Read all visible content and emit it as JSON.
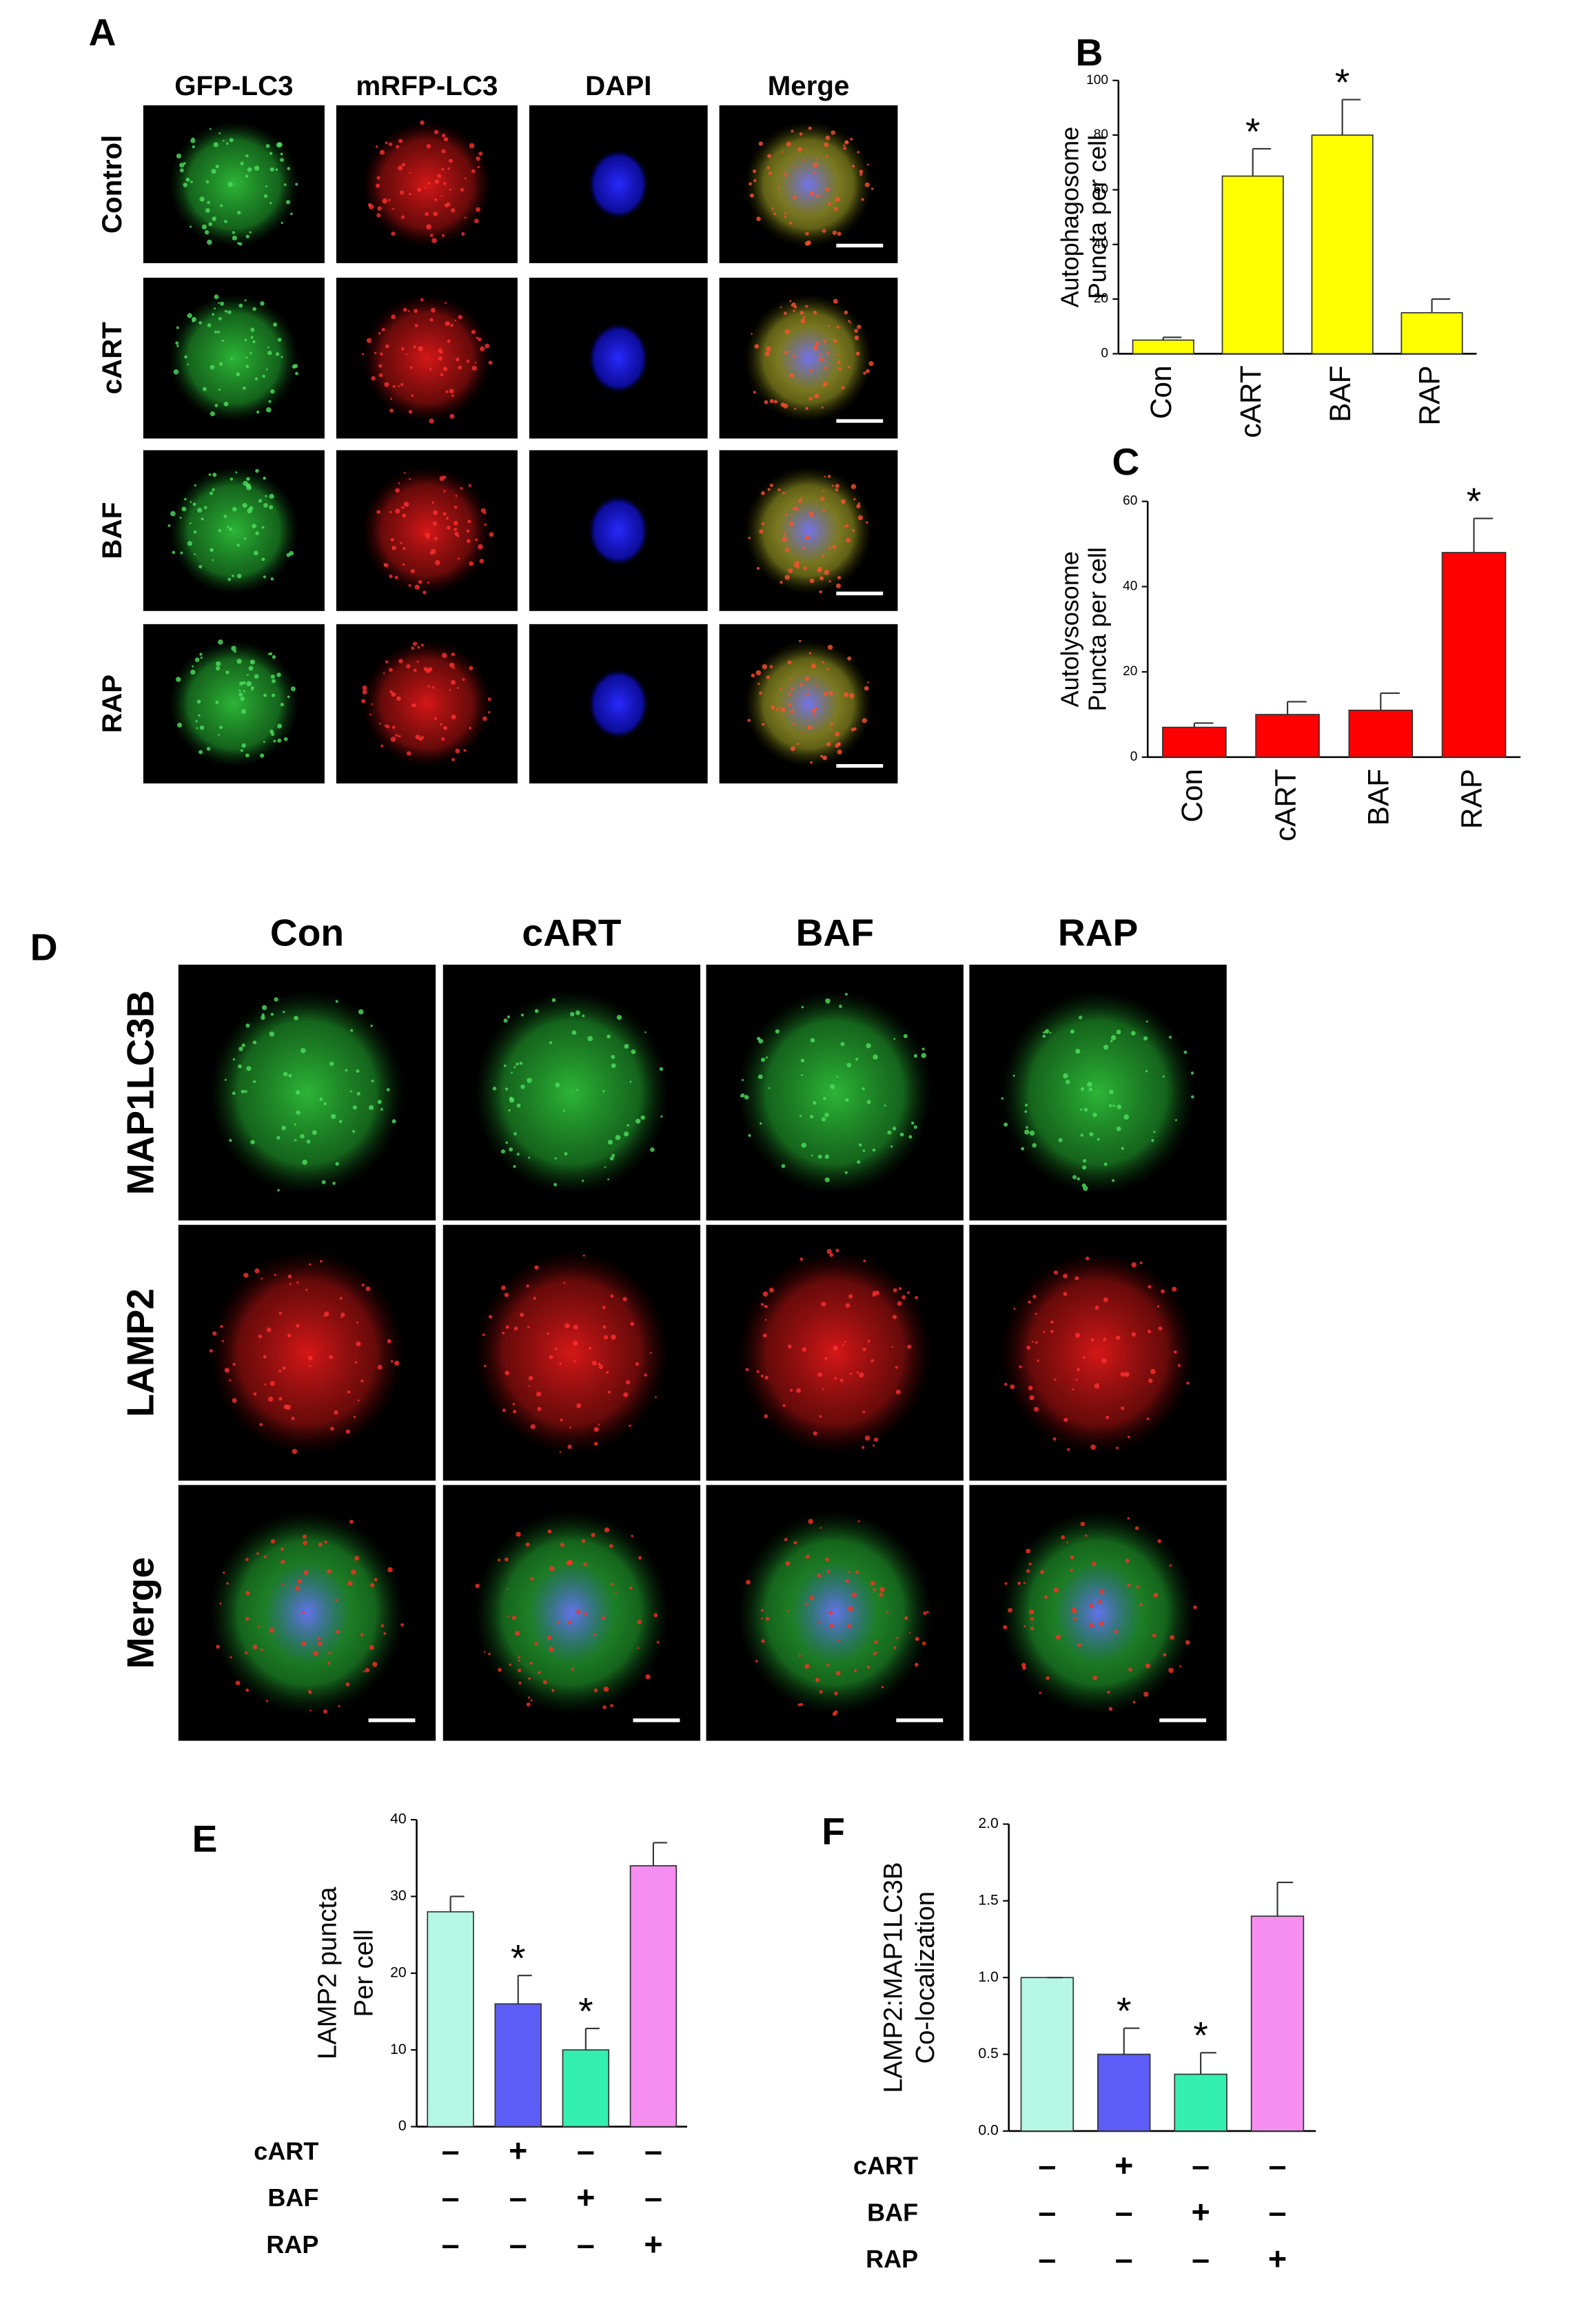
{
  "panel_a": {
    "label": "A",
    "columns": [
      "GFP-LC3",
      "mRFP-LC3",
      "DAPI",
      "Merge"
    ],
    "rows": [
      "Control",
      "cART",
      "BAF",
      "RAP"
    ]
  },
  "panel_d": {
    "label": "D",
    "columns": [
      "Con",
      "cART",
      "BAF",
      "RAP"
    ],
    "rows": [
      "MAP1LC3B",
      "LAMP2",
      "Merge"
    ]
  },
  "chart_data": [
    {
      "type": "bar",
      "panel": "B",
      "ylabel": [
        "Autophagosome",
        "Puncta per cell"
      ],
      "categories": [
        "Con",
        "cART",
        "BAF",
        "RAP"
      ],
      "values": [
        5,
        65,
        80,
        15
      ],
      "errors": [
        1,
        10,
        13,
        5
      ],
      "markers": [
        null,
        "*",
        "*",
        null
      ],
      "color": "#ffff00",
      "ylim": [
        0,
        100
      ],
      "yticks": [
        0,
        20,
        40,
        60,
        80,
        100
      ]
    },
    {
      "type": "bar",
      "panel": "C",
      "ylabel": [
        "Autolysosome",
        "Puncta per cell"
      ],
      "categories": [
        "Con",
        "cART",
        "BAF",
        "RAP"
      ],
      "values": [
        7,
        10,
        11,
        48
      ],
      "errors": [
        1,
        3,
        4,
        8
      ],
      "markers": [
        null,
        null,
        null,
        "*"
      ],
      "color": "#ff0000",
      "ylim": [
        0,
        60
      ],
      "yticks": [
        0,
        20,
        40,
        60
      ]
    },
    {
      "type": "bar",
      "panel": "E",
      "ylabel": [
        "LAMP2 puncta",
        "Per cell"
      ],
      "values": [
        28,
        16,
        10,
        34
      ],
      "errors": [
        2,
        3.7,
        2.8,
        3
      ],
      "markers": [
        null,
        "*",
        "*",
        null
      ],
      "colors": [
        "#b6f7e3",
        "#5c5cf7",
        "#33f0b0",
        "#f58ef0"
      ],
      "ylim": [
        0,
        40
      ],
      "yticks": [
        0,
        10,
        20,
        30,
        40
      ],
      "conditions": [
        {
          "name": "cART",
          "signs": [
            "–",
            "+",
            "–",
            "–"
          ]
        },
        {
          "name": "BAF",
          "signs": [
            "–",
            "–",
            "+",
            "–"
          ]
        },
        {
          "name": "RAP",
          "signs": [
            "–",
            "–",
            "–",
            "+"
          ]
        }
      ]
    },
    {
      "type": "bar",
      "panel": "F",
      "ylabel": [
        "LAMP2:MAP1LC3B",
        "Co-localization"
      ],
      "values": [
        1.0,
        0.5,
        0.37,
        1.4
      ],
      "errors": [
        0,
        0.17,
        0.14,
        0.22
      ],
      "markers": [
        null,
        "*",
        "*",
        null
      ],
      "colors": [
        "#b6f7e3",
        "#5c5cf7",
        "#33f0b0",
        "#f58ef0"
      ],
      "ylim": [
        0,
        2
      ],
      "yticks": [
        {
          "value": 0,
          "label": "0.0"
        },
        0.5,
        {
          "value": 1,
          "label": "1.0"
        },
        1.5,
        {
          "value": 2,
          "label": "2.0"
        }
      ],
      "conditions": [
        {
          "name": "cART",
          "signs": [
            "–",
            "+",
            "–",
            "–"
          ]
        },
        {
          "name": "BAF",
          "signs": [
            "–",
            "–",
            "+",
            "–"
          ]
        },
        {
          "name": "RAP",
          "signs": [
            "–",
            "–",
            "–",
            "+"
          ]
        }
      ]
    }
  ]
}
